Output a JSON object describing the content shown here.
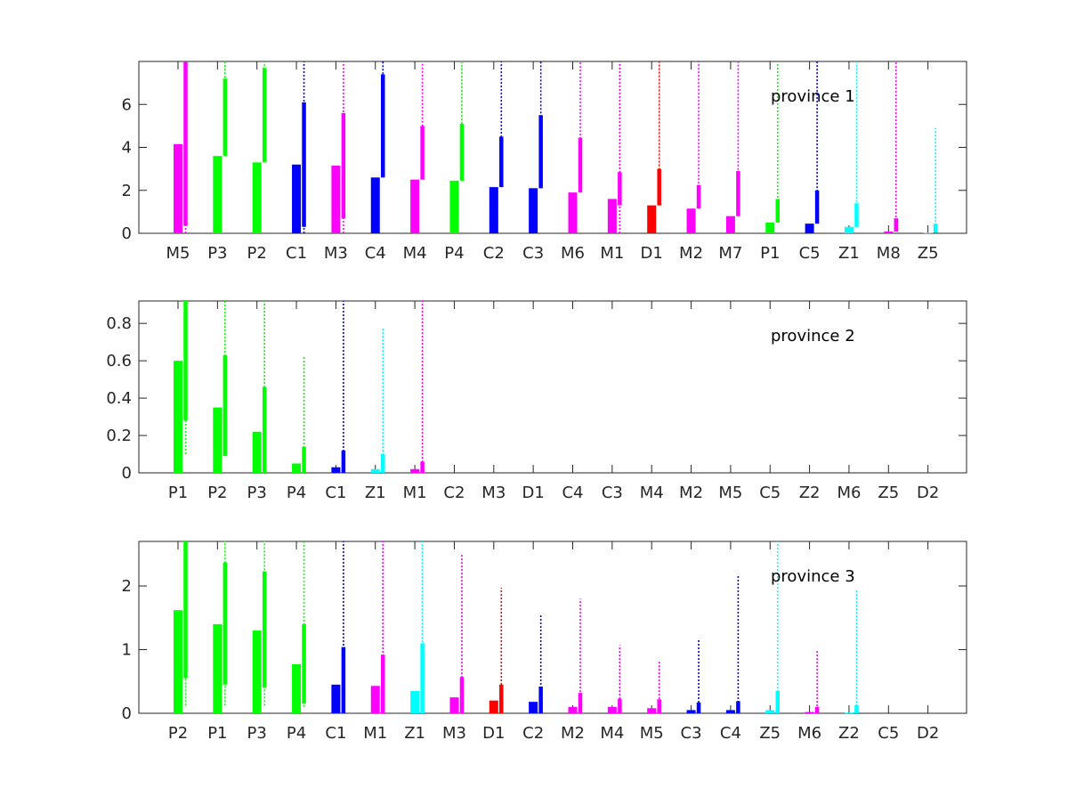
{
  "colors": {
    "P": "#00ff00",
    "C": "#0000ff",
    "M": "#ff00ff",
    "Z": "#00ffff",
    "D": "#ff0000"
  },
  "chart_data": [
    {
      "type": "bar",
      "title": "province 1",
      "ylim": [
        0,
        8
      ],
      "yticks": [
        0,
        2,
        4,
        6
      ],
      "grid": false,
      "legend": "none",
      "categories": [
        "M5",
        "P3",
        "P2",
        "C1",
        "M3",
        "C4",
        "M4",
        "P4",
        "C2",
        "C3",
        "M6",
        "M1",
        "D1",
        "M2",
        "M7",
        "P1",
        "C5",
        "Z1",
        "M8",
        "Z5"
      ],
      "values": [
        4.15,
        3.6,
        3.3,
        3.2,
        3.15,
        2.6,
        2.5,
        2.45,
        2.15,
        2.1,
        1.9,
        1.6,
        1.3,
        1.15,
        0.8,
        0.5,
        0.45,
        0.3,
        0.08,
        0.03
      ],
      "interval_low": [
        0.35,
        3.6,
        3.3,
        0.3,
        0.7,
        2.6,
        2.5,
        2.45,
        2.15,
        2.1,
        1.9,
        1.3,
        1.3,
        1.15,
        0.8,
        0.5,
        0.45,
        0.3,
        0.08,
        0.03
      ],
      "interval_high": [
        8,
        7.2,
        7.7,
        6.1,
        5.6,
        7.4,
        5.0,
        5.1,
        4.5,
        5.5,
        4.45,
        2.85,
        3.0,
        2.25,
        2.9,
        1.6,
        2.0,
        1.4,
        0.7,
        0.45
      ],
      "whisker_low": [
        0,
        3.6,
        3.3,
        0,
        0,
        2.6,
        2.5,
        2.45,
        2.15,
        2.1,
        1.9,
        0,
        1.3,
        1.15,
        0.8,
        0.5,
        0.45,
        0.3,
        0.08,
        0.03
      ],
      "whisker_high": [
        8,
        8,
        8,
        8,
        8,
        8,
        8,
        8,
        8,
        8,
        8,
        8,
        8,
        8,
        8,
        8,
        8,
        8,
        8,
        4.9
      ]
    },
    {
      "type": "bar",
      "title": "province 2",
      "ylim": [
        0,
        0.92
      ],
      "yticks": [
        0,
        0.2,
        0.4,
        0.6,
        0.8
      ],
      "grid": false,
      "legend": "none",
      "categories": [
        "P1",
        "P2",
        "P3",
        "P4",
        "C1",
        "Z1",
        "M1",
        "C2",
        "M3",
        "D1",
        "C4",
        "C3",
        "M4",
        "M2",
        "M5",
        "C5",
        "Z2",
        "M6",
        "Z5",
        "D2"
      ],
      "values": [
        0.6,
        0.35,
        0.22,
        0.05,
        0.03,
        0.02,
        0.02,
        0,
        0,
        0,
        0,
        0,
        0,
        0,
        0,
        0,
        0,
        0,
        0,
        0
      ],
      "interval_low": [
        0.28,
        0.09,
        0,
        0,
        0,
        0,
        0,
        0,
        0,
        0,
        0,
        0,
        0,
        0,
        0,
        0,
        0,
        0,
        0,
        0
      ],
      "interval_high": [
        0.92,
        0.63,
        0.46,
        0.14,
        0.12,
        0.1,
        0.06,
        0,
        0,
        0,
        0,
        0,
        0,
        0,
        0,
        0,
        0,
        0,
        0,
        0
      ],
      "whisker_low": [
        0.1,
        0.09,
        0,
        0,
        0,
        0,
        0,
        0,
        0,
        0,
        0,
        0,
        0,
        0,
        0,
        0,
        0,
        0,
        0,
        0
      ],
      "whisker_high": [
        0.92,
        0.92,
        0.92,
        0.62,
        0.92,
        0.78,
        0.92,
        0,
        0,
        0,
        0,
        0,
        0,
        0,
        0,
        0,
        0,
        0,
        0,
        0
      ]
    },
    {
      "type": "bar",
      "title": "province 3",
      "ylim": [
        0,
        2.7
      ],
      "yticks": [
        0,
        1,
        2
      ],
      "grid": false,
      "legend": "none",
      "categories": [
        "P2",
        "P1",
        "P3",
        "P4",
        "C1",
        "M1",
        "Z1",
        "M3",
        "D1",
        "C2",
        "M2",
        "M4",
        "M5",
        "C3",
        "C4",
        "Z5",
        "M6",
        "Z2",
        "C5",
        "D2"
      ],
      "values": [
        1.62,
        1.4,
        1.3,
        0.77,
        0.45,
        0.43,
        0.35,
        0.25,
        0.2,
        0.18,
        0.1,
        0.1,
        0.08,
        0.05,
        0.05,
        0.05,
        0.02,
        0.01,
        0,
        0
      ],
      "interval_low": [
        0.55,
        0.45,
        0.4,
        0.15,
        0,
        0,
        0,
        0,
        0,
        0,
        0,
        0,
        0,
        0,
        0,
        0,
        0,
        0,
        0,
        0
      ],
      "interval_high": [
        2.7,
        2.37,
        2.23,
        1.4,
        1.04,
        0.92,
        1.1,
        0.57,
        0.45,
        0.42,
        0.32,
        0.23,
        0.22,
        0.17,
        0.19,
        0.35,
        0.1,
        0.13,
        0,
        0
      ],
      "whisker_low": [
        0.12,
        0.12,
        0.12,
        0.1,
        0,
        0,
        0,
        0,
        0,
        0,
        0,
        0,
        0,
        0,
        0,
        0,
        0,
        0,
        0,
        0
      ],
      "whisker_high": [
        2.7,
        2.7,
        2.7,
        2.7,
        2.7,
        2.7,
        2.7,
        2.5,
        1.97,
        1.55,
        1.8,
        1.07,
        0.82,
        1.16,
        2.16,
        2.7,
        1.0,
        1.93,
        0,
        0
      ]
    }
  ]
}
